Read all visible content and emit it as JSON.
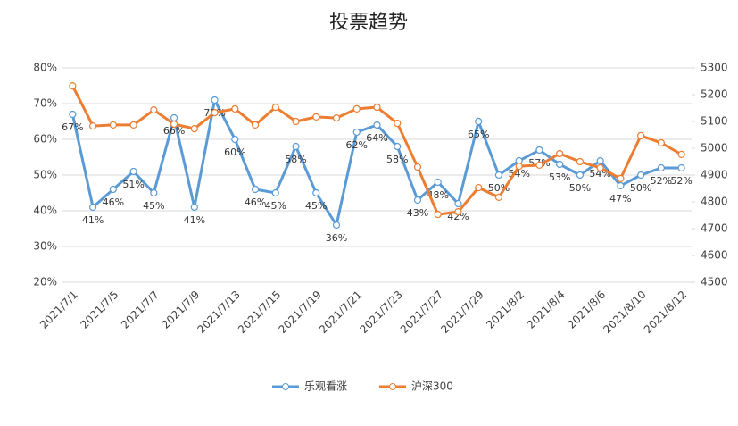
{
  "chart_data": {
    "type": "line",
    "title": "投票趋势",
    "categories": [
      "2021/7/1",
      null,
      "2021/7/5",
      null,
      "2021/7/7",
      null,
      "2021/7/9",
      null,
      "2021/7/13",
      null,
      "2021/7/15",
      null,
      "2021/7/19",
      null,
      "2021/7/21",
      null,
      "2021/7/23",
      null,
      "2021/7/27",
      null,
      "2021/7/29",
      null,
      "2021/8/2",
      null,
      "2021/8/4",
      null,
      "2021/8/6",
      null,
      "2021/8/10",
      null,
      "2021/8/12"
    ],
    "ylim": [
      20,
      80
    ],
    "yticks": [
      {
        "value": 20,
        "label": "20%"
      },
      {
        "value": 30,
        "label": "30%"
      },
      {
        "value": 40,
        "label": "40%"
      },
      {
        "value": 50,
        "label": "50%"
      },
      {
        "value": 60,
        "label": "60%"
      },
      {
        "value": 70,
        "label": "70%"
      },
      {
        "value": 80,
        "label": "80%"
      }
    ],
    "y2lim": [
      4500,
      5300
    ],
    "y2ticks": [
      4500,
      4600,
      4700,
      4800,
      4900,
      5000,
      5100,
      5200,
      5300
    ],
    "grid": true,
    "legend": "bottom",
    "series": [
      {
        "name": "乐观看涨",
        "color": "#5b9bd5",
        "values": [
          67,
          41,
          46,
          51,
          45,
          66,
          41,
          71,
          60,
          46,
          45,
          58,
          45,
          36,
          62,
          64,
          58,
          43,
          48,
          42,
          65,
          50,
          54,
          57,
          53,
          50,
          54,
          47,
          50,
          52,
          52
        ],
        "value_labels": [
          "67%",
          "41%",
          "46%",
          "51%",
          "45%",
          "66%",
          "41%",
          "71%",
          "60%",
          "46%",
          "45%",
          "58%",
          "45%",
          "36%",
          "62%",
          "64%",
          "58%",
          "43%",
          "48%",
          "42%",
          "65%",
          "50%",
          "54%",
          "57%",
          "53%",
          "50%",
          "54%",
          "47%",
          "50%",
          "52%",
          "52%"
        ]
      },
      {
        "name": "沪深300",
        "color": "#ed7d31",
        "axis": "y2",
        "values": [
          5233,
          5083,
          5087,
          5087,
          5143,
          5090,
          5073,
          5133,
          5147,
          5087,
          5153,
          5100,
          5117,
          5113,
          5147,
          5153,
          5093,
          4930,
          4753,
          4763,
          4853,
          4817,
          4933,
          4937,
          4980,
          4950,
          4927,
          4887,
          5047,
          5020,
          4977
        ]
      }
    ]
  }
}
